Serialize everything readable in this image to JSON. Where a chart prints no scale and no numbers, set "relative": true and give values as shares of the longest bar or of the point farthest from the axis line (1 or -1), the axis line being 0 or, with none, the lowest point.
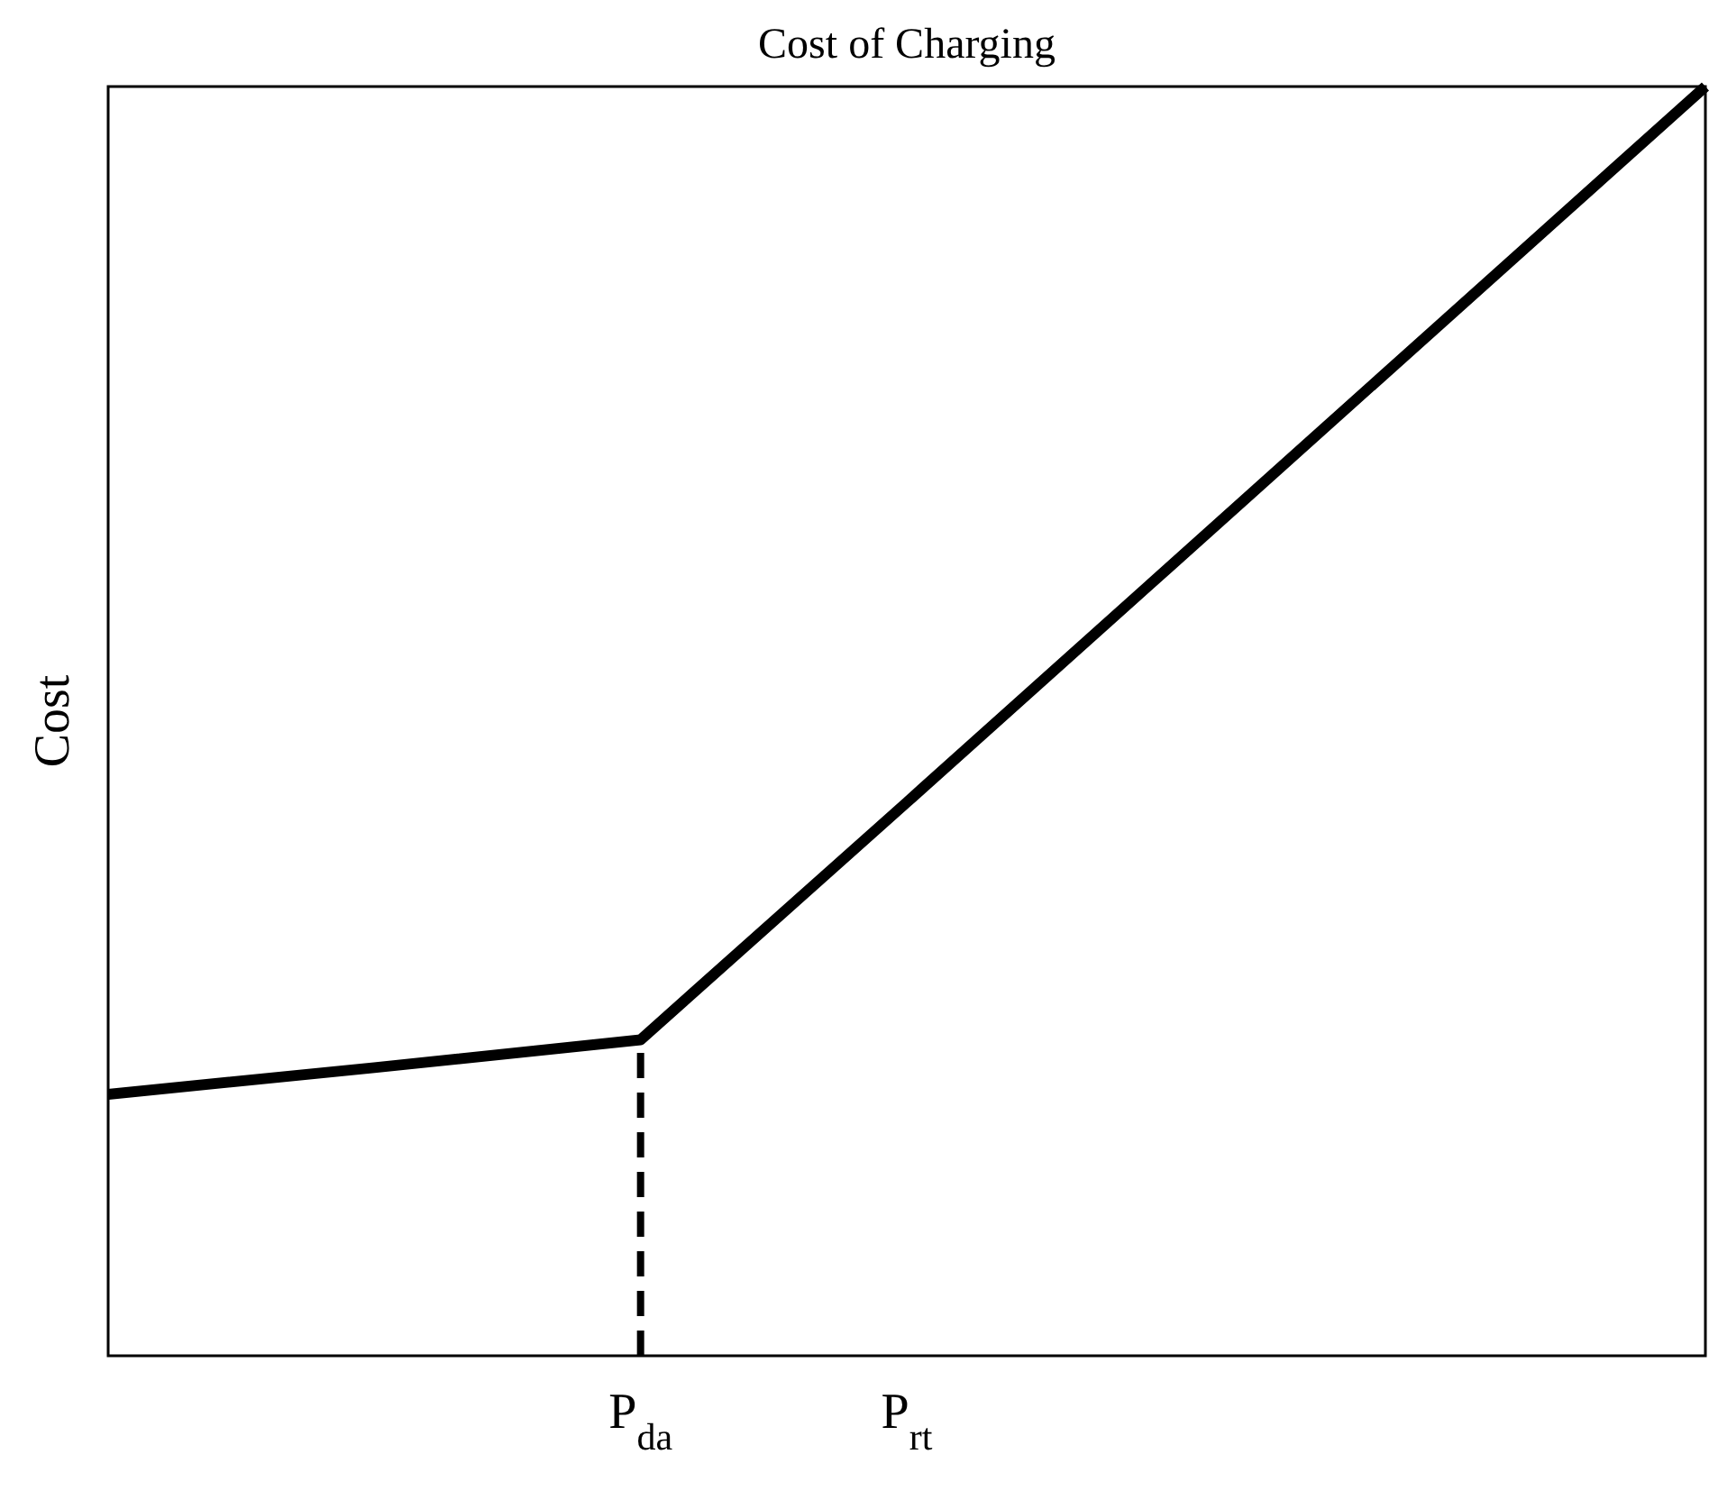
{
  "chart_data": {
    "type": "line",
    "title": "Cost of Charging",
    "ylabel": "Cost",
    "relative": true,
    "categories": [
      null,
      null,
      "P$_{da}$",
      "P$_{rt}$",
      null,
      null,
      null
    ],
    "grid": false,
    "marker": "none",
    "series": [
      {
        "color": "#000000",
        "values": [
          0.206,
          0.227,
          0.249,
          0.436,
          0.624,
          0.812,
          1
        ],
        "line_style": "solid"
      },
      {
        "color": "#000000",
        "x": [
          "P$_{da}$",
          "P$_{da}$"
        ],
        "values": [
          0,
          0.249
        ],
        "line_style": "dashed"
      }
    ]
  }
}
